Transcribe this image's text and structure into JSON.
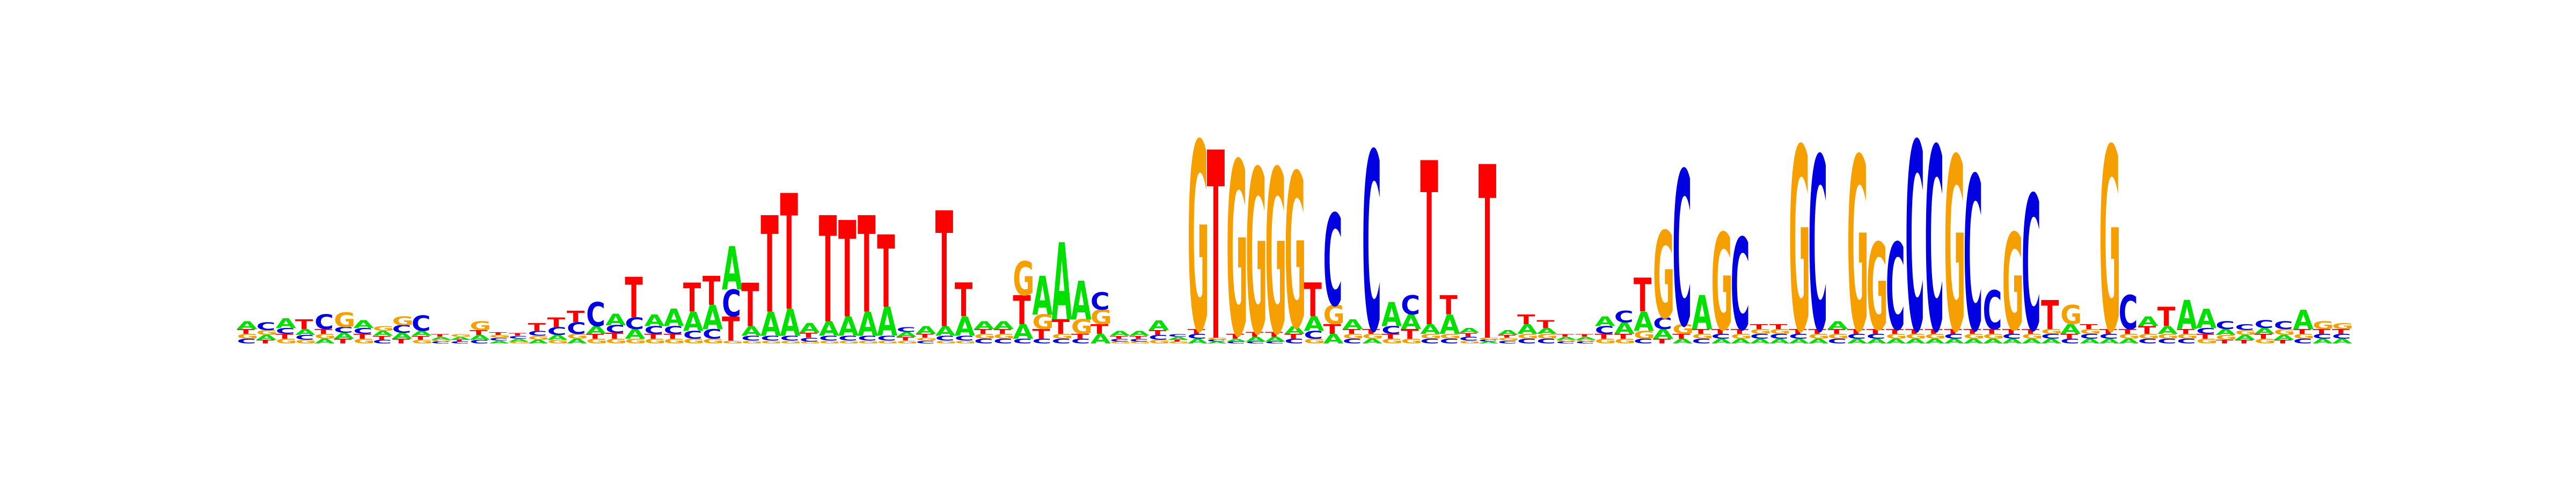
{
  "chart_data": {
    "type": "sequence-logo",
    "title": "",
    "xlabel": "",
    "ylabel": "",
    "colors": {
      "A": "#00e000",
      "C": "#0000e0",
      "G": "#f5a000",
      "T": "#ff0000"
    },
    "columns": [
      {
        "A": 0.08,
        "C": 0.05,
        "G": 0.05,
        "T": 0.05
      },
      {
        "A": 0.05,
        "C": 0.08,
        "G": 0.05,
        "T": 0.04
      },
      {
        "A": 0.1,
        "C": 0.06,
        "G": 0.05,
        "T": 0.05
      },
      {
        "A": 0.06,
        "C": 0.05,
        "G": 0.04,
        "T": 0.1
      },
      {
        "A": 0.05,
        "C": 0.15,
        "G": 0.05,
        "T": 0.05
      },
      {
        "A": 0.06,
        "C": 0.06,
        "G": 0.15,
        "T": 0.05
      },
      {
        "A": 0.08,
        "C": 0.06,
        "G": 0.05,
        "T": 0.05
      },
      {
        "A": 0.05,
        "C": 0.04,
        "G": 0.05,
        "T": 0.04
      },
      {
        "A": 0.06,
        "C": 0.08,
        "G": 0.09,
        "T": 0.05
      },
      {
        "A": 0.05,
        "C": 0.16,
        "G": 0.04,
        "T": 0.04
      },
      {
        "A": 0.03,
        "C": 0.02,
        "G": 0.02,
        "T": 0.03
      },
      {
        "A": 0.03,
        "C": 0.02,
        "G": 0.03,
        "T": 0.02
      },
      {
        "A": 0.05,
        "C": 0.04,
        "G": 0.09,
        "T": 0.05
      },
      {
        "A": 0.03,
        "C": 0.03,
        "G": 0.03,
        "T": 0.03
      },
      {
        "A": 0.03,
        "C": 0.03,
        "G": 0.02,
        "T": 0.03
      },
      {
        "A": 0.04,
        "C": 0.05,
        "G": 0.04,
        "T": 0.08
      },
      {
        "A": 0.05,
        "C": 0.08,
        "G": 0.04,
        "T": 0.1
      },
      {
        "A": 0.05,
        "C": 0.12,
        "G": 0.05,
        "T": 0.12
      },
      {
        "A": 0.08,
        "C": 0.25,
        "G": 0.05,
        "T": 0.05
      },
      {
        "A": 0.12,
        "C": 0.08,
        "G": 0.05,
        "T": 0.06
      },
      {
        "A": 0.1,
        "C": 0.12,
        "G": 0.05,
        "T": 0.42
      },
      {
        "A": 0.12,
        "C": 0.08,
        "G": 0.05,
        "T": 0.05
      },
      {
        "A": 0.18,
        "C": 0.08,
        "G": 0.05,
        "T": 0.05
      },
      {
        "A": 0.2,
        "C": 0.08,
        "G": 0.05,
        "T": 0.3
      },
      {
        "A": 0.25,
        "C": 0.1,
        "G": 0.05,
        "T": 0.3
      },
      {
        "A": 0.45,
        "C": 0.28,
        "G": 0.03,
        "T": 0.25
      },
      {
        "A": 0.1,
        "C": 0.05,
        "G": 0.03,
        "T": 0.45
      },
      {
        "A": 0.25,
        "C": 0.05,
        "G": 0.03,
        "T": 1.0
      },
      {
        "A": 0.28,
        "C": 0.05,
        "G": 0.03,
        "T": 1.2
      },
      {
        "A": 0.1,
        "C": 0.04,
        "G": 0.02,
        "T": 0.05
      },
      {
        "A": 0.15,
        "C": 0.05,
        "G": 0.03,
        "T": 1.1
      },
      {
        "A": 0.2,
        "C": 0.05,
        "G": 0.03,
        "T": 1.0
      },
      {
        "A": 0.25,
        "C": 0.05,
        "G": 0.03,
        "T": 1.0
      },
      {
        "A": 0.3,
        "C": 0.05,
        "G": 0.03,
        "T": 0.75
      },
      {
        "A": 0.05,
        "C": 0.05,
        "G": 0.03,
        "T": 0.04
      },
      {
        "A": 0.08,
        "C": 0.03,
        "G": 0.03,
        "T": 0.04
      },
      {
        "A": 0.1,
        "C": 0.05,
        "G": 0.03,
        "T": 1.2
      },
      {
        "A": 0.2,
        "C": 0.05,
        "G": 0.03,
        "T": 0.35
      },
      {
        "A": 0.08,
        "C": 0.05,
        "G": 0.05,
        "T": 0.05
      },
      {
        "A": 0.08,
        "C": 0.05,
        "G": 0.05,
        "T": 0.05
      },
      {
        "A": 0.15,
        "C": 0.05,
        "G": 0.35,
        "T": 0.3
      },
      {
        "A": 0.4,
        "C": 0.05,
        "G": 0.15,
        "T": 0.1
      },
      {
        "A": 0.8,
        "C": 0.05,
        "G": 0.05,
        "T": 0.15
      },
      {
        "A": 0.4,
        "C": 0.05,
        "G": 0.15,
        "T": 0.05
      },
      {
        "A": 0.1,
        "C": 0.18,
        "G": 0.15,
        "T": 0.1
      },
      {
        "A": 0.05,
        "C": 0.03,
        "G": 0.02,
        "T": 0.03
      },
      {
        "A": 0.05,
        "C": 0.03,
        "G": 0.02,
        "T": 0.03
      },
      {
        "A": 0.1,
        "C": 0.05,
        "G": 0.04,
        "T": 0.05
      },
      {
        "A": 0.03,
        "C": 0.03,
        "G": 0.02,
        "T": 0.02
      },
      {
        "A": 0.05,
        "C": 0.05,
        "G": 1.95,
        "T": 0.05
      },
      {
        "A": 0.02,
        "C": 0.02,
        "G": 0.02,
        "T": 1.95
      },
      {
        "A": 0.03,
        "C": 0.02,
        "G": 1.8,
        "T": 0.05
      },
      {
        "A": 0.05,
        "C": 0.02,
        "G": 1.7,
        "T": 0.05
      },
      {
        "A": 0.05,
        "C": 0.02,
        "G": 1.7,
        "T": 0.05
      },
      {
        "A": 0.08,
        "C": 0.05,
        "G": 1.6,
        "T": 0.05
      },
      {
        "A": 0.15,
        "C": 0.08,
        "G": 0.05,
        "T": 0.35
      },
      {
        "A": 0.1,
        "C": 0.95,
        "G": 0.2,
        "T": 0.1
      },
      {
        "A": 0.1,
        "C": 0.05,
        "G": 0.05,
        "T": 0.05
      },
      {
        "A": 0.05,
        "C": 1.85,
        "G": 0.05,
        "T": 0.05
      },
      {
        "A": 0.25,
        "C": 0.08,
        "G": 0.05,
        "T": 0.05
      },
      {
        "A": 0.15,
        "C": 0.2,
        "G": 0.05,
        "T": 0.1
      },
      {
        "A": 0.1,
        "C": 0.05,
        "G": 0.05,
        "T": 1.7
      },
      {
        "A": 0.2,
        "C": 0.05,
        "G": 0.05,
        "T": 0.2
      },
      {
        "A": 0.05,
        "C": 0.04,
        "G": 0.03,
        "T": 0.04
      },
      {
        "A": 0.02,
        "C": 0.02,
        "G": 0.02,
        "T": 1.8
      },
      {
        "A": 0.05,
        "C": 0.03,
        "G": 0.03,
        "T": 0.03
      },
      {
        "A": 0.1,
        "C": 0.05,
        "G": 0.05,
        "T": 0.1
      },
      {
        "A": 0.06,
        "C": 0.05,
        "G": 0.05,
        "T": 0.08
      },
      {
        "A": 0.03,
        "C": 0.02,
        "G": 0.02,
        "T": 0.03
      },
      {
        "A": 0.03,
        "C": 0.02,
        "G": 0.02,
        "T": 0.03
      },
      {
        "A": 0.1,
        "C": 0.08,
        "G": 0.05,
        "T": 0.05
      },
      {
        "A": 0.12,
        "C": 0.12,
        "G": 0.05,
        "T": 0.05
      },
      {
        "A": 0.2,
        "C": 0.05,
        "G": 0.08,
        "T": 0.35
      },
      {
        "A": 0.1,
        "C": 0.12,
        "G": 0.9,
        "T": 0.05
      },
      {
        "A": 0.05,
        "C": 1.6,
        "G": 0.1,
        "T": 0.05
      },
      {
        "A": 0.35,
        "C": 0.05,
        "G": 0.05,
        "T": 0.05
      },
      {
        "A": 0.05,
        "C": 0.05,
        "G": 1.0,
        "T": 0.05
      },
      {
        "A": 0.05,
        "C": 0.95,
        "G": 0.05,
        "T": 0.05
      },
      {
        "A": 0.05,
        "C": 0.05,
        "G": 0.05,
        "T": 0.05
      },
      {
        "A": 0.05,
        "C": 0.05,
        "G": 0.05,
        "T": 0.05
      },
      {
        "A": 0.05,
        "C": 0.05,
        "G": 1.9,
        "T": 0.05
      },
      {
        "A": 0.05,
        "C": 1.8,
        "G": 0.05,
        "T": 0.05
      },
      {
        "A": 0.08,
        "C": 0.05,
        "G": 0.05,
        "T": 0.05
      },
      {
        "A": 0.05,
        "C": 0.05,
        "G": 1.8,
        "T": 0.05
      },
      {
        "A": 0.05,
        "C": 0.05,
        "G": 0.9,
        "T": 0.05
      },
      {
        "A": 0.05,
        "C": 0.9,
        "G": 0.05,
        "T": 0.05
      },
      {
        "A": 0.05,
        "C": 1.95,
        "G": 0.05,
        "T": 0.05
      },
      {
        "A": 0.05,
        "C": 1.9,
        "G": 0.05,
        "T": 0.05
      },
      {
        "A": 0.05,
        "C": 0.05,
        "G": 1.8,
        "T": 0.05
      },
      {
        "A": 0.05,
        "C": 1.6,
        "G": 0.05,
        "T": 0.05
      },
      {
        "A": 0.05,
        "C": 0.4,
        "G": 0.05,
        "T": 0.05
      },
      {
        "A": 0.05,
        "C": 0.05,
        "G": 1.0,
        "T": 0.05
      },
      {
        "A": 0.05,
        "C": 1.4,
        "G": 0.05,
        "T": 0.05
      },
      {
        "A": 0.05,
        "C": 0.05,
        "G": 0.05,
        "T": 0.3
      },
      {
        "A": 0.1,
        "C": 0.05,
        "G": 0.2,
        "T": 0.05
      },
      {
        "A": 0.05,
        "C": 0.05,
        "G": 0.05,
        "T": 0.05
      },
      {
        "A": 0.05,
        "C": 0.05,
        "G": 1.9,
        "T": 0.05
      },
      {
        "A": 0.05,
        "C": 0.35,
        "G": 0.05,
        "T": 0.05
      },
      {
        "A": 0.1,
        "C": 0.05,
        "G": 0.05,
        "T": 0.08
      },
      {
        "A": 0.08,
        "C": 0.05,
        "G": 0.05,
        "T": 0.2
      },
      {
        "A": 0.3,
        "C": 0.05,
        "G": 0.05,
        "T": 0.05
      },
      {
        "A": 0.2,
        "C": 0.06,
        "G": 0.05,
        "T": 0.05
      },
      {
        "A": 0.06,
        "C": 0.08,
        "G": 0.05,
        "T": 0.04
      },
      {
        "A": 0.05,
        "C": 0.06,
        "G": 0.05,
        "T": 0.04
      },
      {
        "A": 0.06,
        "C": 0.08,
        "G": 0.05,
        "T": 0.05
      },
      {
        "A": 0.05,
        "C": 0.08,
        "G": 0.06,
        "T": 0.04
      },
      {
        "A": 0.2,
        "C": 0.05,
        "G": 0.05,
        "T": 0.05
      },
      {
        "A": 0.05,
        "C": 0.05,
        "G": 0.08,
        "T": 0.05
      },
      {
        "A": 0.05,
        "C": 0.05,
        "G": 0.06,
        "T": 0.05
      }
    ]
  }
}
